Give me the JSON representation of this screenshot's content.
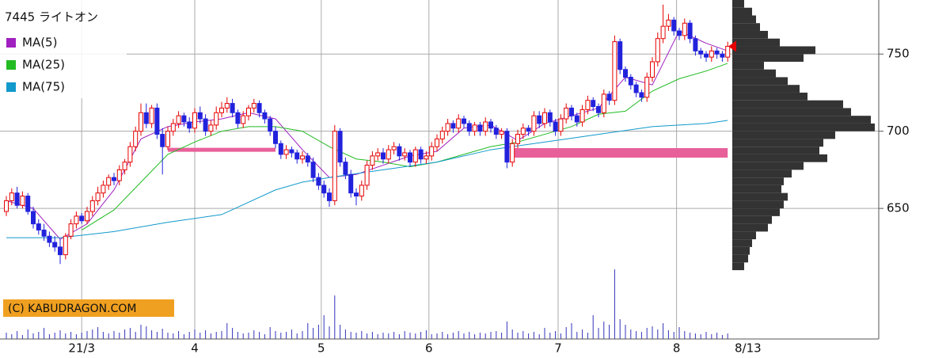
{
  "chart_data": {
    "type": "candlestick",
    "title": "7445 ライトオン",
    "up_color": "#e60000",
    "down_color": "#2222dd",
    "ylim": [
      608,
      785
    ],
    "yticks": [
      650,
      700,
      750
    ],
    "xticks": [
      {
        "value": 14,
        "label": "21/3"
      },
      {
        "value": 35,
        "label": "4"
      },
      {
        "value": 58.5,
        "label": "5"
      },
      {
        "value": 78.5,
        "label": "6"
      },
      {
        "value": 102.5,
        "label": "7"
      },
      {
        "value": 124.5,
        "label": "8"
      }
    ],
    "last_date": "8/13",
    "grid": true,
    "open": [
      648,
      655,
      660,
      652,
      658,
      648,
      640,
      636,
      632,
      628,
      625,
      620,
      632,
      640,
      645,
      642,
      648,
      655,
      660,
      665,
      670,
      668,
      675,
      680,
      690,
      700,
      712,
      705,
      715,
      698,
      690,
      700,
      705,
      710,
      706,
      702,
      712,
      708,
      700,
      704,
      712,
      715,
      718,
      712,
      705,
      710,
      715,
      718,
      712,
      708,
      700,
      692,
      685,
      688,
      686,
      682,
      684,
      680,
      670,
      665,
      660,
      655,
      700,
      680,
      672,
      660,
      658,
      665,
      678,
      684,
      686,
      682,
      688,
      690,
      684,
      686,
      680,
      688,
      682,
      684,
      690,
      695,
      700,
      705,
      702,
      708,
      705,
      700,
      704,
      700,
      706,
      702,
      698,
      700,
      680,
      692,
      698,
      702,
      700,
      710,
      705,
      712,
      706,
      700,
      708,
      715,
      710,
      706,
      714,
      720,
      716,
      712,
      724,
      720,
      758,
      740,
      735,
      730,
      725,
      722,
      735,
      745,
      760,
      768,
      772,
      765,
      762,
      770,
      760,
      752,
      750,
      748,
      752,
      750,
      748
    ],
    "high": [
      658,
      663,
      664,
      661,
      660,
      651,
      643,
      640,
      635,
      632,
      630,
      634,
      643,
      648,
      647,
      651,
      658,
      664,
      668,
      672,
      673,
      678,
      682,
      693,
      703,
      718,
      718,
      717,
      718,
      702,
      703,
      708,
      713,
      712,
      709,
      715,
      716,
      711,
      707,
      716,
      719,
      722,
      721,
      714,
      713,
      717,
      721,
      720,
      714,
      710,
      703,
      694,
      691,
      690,
      688,
      687,
      686,
      683,
      673,
      668,
      663,
      704,
      702,
      683,
      675,
      663,
      668,
      681,
      687,
      689,
      689,
      691,
      693,
      692,
      689,
      688,
      690,
      690,
      687,
      693,
      698,
      703,
      708,
      707,
      711,
      710,
      707,
      706,
      706,
      709,
      708,
      704,
      702,
      702,
      695,
      701,
      705,
      704,
      713,
      713,
      715,
      714,
      708,
      711,
      718,
      717,
      712,
      717,
      723,
      722,
      718,
      727,
      726,
      762,
      760,
      742,
      737,
      732,
      727,
      738,
      748,
      764,
      782,
      776,
      774,
      767,
      773,
      772,
      762,
      754,
      752,
      755,
      754,
      752,
      758
    ],
    "low": [
      645,
      652,
      650,
      650,
      646,
      637,
      633,
      629,
      625,
      622,
      614,
      617,
      630,
      637,
      640,
      640,
      645,
      652,
      657,
      662,
      665,
      665,
      672,
      677,
      687,
      697,
      702,
      702,
      695,
      672,
      688,
      697,
      702,
      703,
      699,
      699,
      705,
      697,
      697,
      701,
      709,
      712,
      709,
      702,
      702,
      707,
      712,
      709,
      705,
      697,
      689,
      682,
      682,
      683,
      679,
      679,
      677,
      667,
      662,
      657,
      651,
      652,
      677,
      669,
      657,
      652,
      655,
      662,
      675,
      681,
      679,
      679,
      685,
      681,
      681,
      677,
      677,
      679,
      679,
      681,
      687,
      692,
      697,
      699,
      699,
      702,
      697,
      697,
      697,
      697,
      699,
      695,
      695,
      676,
      677,
      689,
      695,
      697,
      697,
      702,
      702,
      703,
      697,
      697,
      705,
      707,
      703,
      703,
      711,
      713,
      709,
      709,
      717,
      717,
      737,
      732,
      727,
      722,
      719,
      719,
      732,
      742,
      757,
      765,
      762,
      759,
      759,
      757,
      749,
      747,
      745,
      745,
      747,
      745,
      745
    ],
    "close": [
      655,
      660,
      652,
      658,
      648,
      640,
      636,
      632,
      628,
      625,
      620,
      632,
      640,
      645,
      642,
      648,
      655,
      660,
      665,
      670,
      668,
      675,
      680,
      690,
      700,
      712,
      705,
      715,
      698,
      690,
      700,
      705,
      710,
      706,
      702,
      712,
      708,
      700,
      704,
      712,
      715,
      718,
      712,
      705,
      710,
      715,
      718,
      712,
      708,
      700,
      692,
      685,
      688,
      686,
      682,
      684,
      680,
      670,
      665,
      660,
      655,
      700,
      680,
      672,
      660,
      658,
      665,
      678,
      684,
      686,
      682,
      688,
      690,
      684,
      686,
      680,
      688,
      682,
      684,
      690,
      695,
      700,
      705,
      702,
      708,
      705,
      700,
      704,
      700,
      706,
      702,
      698,
      700,
      680,
      692,
      698,
      702,
      700,
      710,
      705,
      712,
      706,
      700,
      708,
      715,
      710,
      706,
      714,
      720,
      716,
      712,
      724,
      720,
      758,
      740,
      735,
      730,
      725,
      722,
      735,
      745,
      760,
      768,
      772,
      765,
      762,
      770,
      760,
      752,
      750,
      748,
      752,
      750,
      748,
      755
    ],
    "volume": [
      8,
      6,
      10,
      5,
      12,
      7,
      9,
      14,
      6,
      8,
      11,
      7,
      9,
      6,
      8,
      10,
      12,
      15,
      9,
      7,
      10,
      8,
      12,
      14,
      9,
      18,
      16,
      11,
      9,
      13,
      8,
      7,
      10,
      6,
      9,
      12,
      8,
      11,
      7,
      9,
      10,
      20,
      14,
      9,
      7,
      8,
      11,
      9,
      6,
      15,
      10,
      8,
      9,
      12,
      7,
      10,
      20,
      14,
      18,
      30,
      16,
      55,
      18,
      12,
      9,
      8,
      10,
      7,
      9,
      6,
      8,
      7,
      9,
      6,
      10,
      8,
      7,
      9,
      11,
      6,
      7,
      9,
      6,
      8,
      10,
      7,
      9,
      6,
      8,
      7,
      9,
      10,
      8,
      22,
      12,
      8,
      10,
      7,
      9,
      6,
      14,
      8,
      10,
      7,
      15,
      20,
      9,
      12,
      8,
      30,
      14,
      22,
      18,
      88,
      25,
      18,
      12,
      10,
      9,
      14,
      16,
      12,
      20,
      11,
      9,
      15,
      10,
      8,
      7,
      6,
      9,
      6,
      8,
      5,
      7
    ],
    "volume_ylim": [
      0,
      100
    ],
    "volume_color": "#3333bb",
    "moving_averages": [
      {
        "name": "MA(5)",
        "color": "#a020c0",
        "x": [
          0,
          5,
          10,
          15,
          20,
          25,
          30,
          35,
          40,
          45,
          50,
          55,
          60,
          65,
          70,
          75,
          80,
          85,
          90,
          95,
          100,
          105,
          110,
          115,
          120,
          125,
          130,
          134
        ],
        "values": [
          655,
          650,
          630,
          640,
          662,
          695,
          703,
          706,
          708,
          712,
          708,
          688,
          670,
          672,
          678,
          684,
          687,
          702,
          704,
          694,
          705,
          710,
          715,
          735,
          730,
          765,
          757,
          752
        ]
      },
      {
        "name": "MA(25)",
        "color": "#22bb22",
        "x": [
          14,
          20,
          25,
          30,
          35,
          40,
          45,
          50,
          55,
          60,
          65,
          70,
          75,
          80,
          85,
          90,
          95,
          100,
          105,
          110,
          115,
          120,
          125,
          130,
          134
        ],
        "values": [
          636,
          649,
          667,
          685,
          693,
          700,
          703,
          703,
          700,
          690,
          682,
          680,
          677,
          680,
          685,
          690,
          693,
          698,
          703,
          711,
          713,
          726,
          734,
          739,
          744
        ]
      },
      {
        "name": "MA(75)",
        "color": "#1199cc",
        "x": [
          0,
          10,
          20,
          30,
          40,
          50,
          55,
          60,
          70,
          80,
          90,
          100,
          110,
          120,
          130,
          134
        ],
        "values": [
          631,
          631,
          635,
          641,
          646,
          662,
          667,
          670,
          675,
          680,
          688,
          693,
          698,
          703,
          705,
          707
        ]
      }
    ],
    "levels": [
      {
        "value": 688,
        "from": 30,
        "to": 50
      },
      {
        "value": 686,
        "from": 94,
        "to": 134
      }
    ],
    "level_color": "#e8609a",
    "volume_profile": {
      "color": "#333333",
      "bins": [
        610,
        615,
        620,
        625,
        630,
        635,
        640,
        645,
        650,
        655,
        660,
        665,
        670,
        675,
        680,
        685,
        690,
        695,
        700,
        705,
        710,
        715,
        720,
        725,
        730,
        735,
        740,
        745,
        750,
        755,
        760,
        765,
        770,
        775,
        780,
        785
      ],
      "counts": [
        15,
        20,
        22,
        25,
        30,
        45,
        50,
        60,
        65,
        70,
        62,
        65,
        75,
        90,
        120,
        110,
        115,
        130,
        180,
        175,
        150,
        140,
        95,
        85,
        70,
        55,
        40,
        90,
        105,
        60,
        45,
        35,
        30,
        25,
        15
      ]
    },
    "watermark": "(C) KABUDRAGON.COM"
  }
}
